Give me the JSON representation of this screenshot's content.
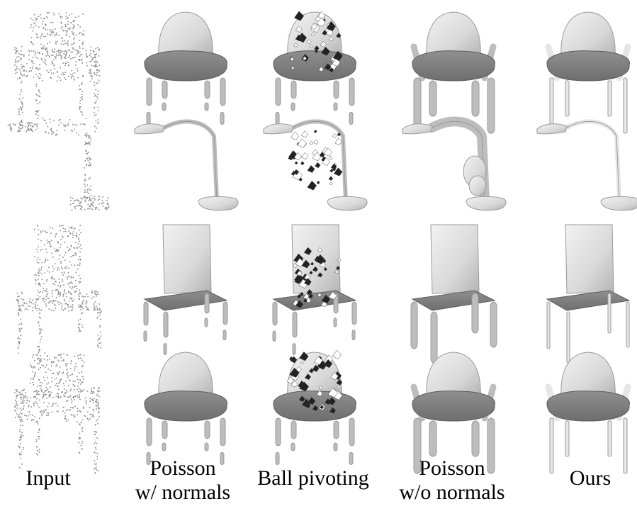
{
  "figure": {
    "columns": [
      {
        "id": "input",
        "lines": [
          "Input"
        ]
      },
      {
        "id": "poisson-normals",
        "lines": [
          "Poisson",
          "w/ normals"
        ]
      },
      {
        "id": "ball-pivoting",
        "lines": [
          "Ball pivoting"
        ]
      },
      {
        "id": "poisson-no-normals",
        "lines": [
          "Poisson",
          "w/o normals"
        ]
      },
      {
        "id": "ours",
        "lines": [
          "Ours"
        ]
      }
    ],
    "rows": [
      "armchair",
      "lamp",
      "chair",
      "armchair-2"
    ],
    "colors": {
      "background": "#ffffff",
      "point": "#8a8a8a",
      "surface_light": "#e6e6e6",
      "surface_mid": "#bdbdbd",
      "surface_dark": "#777777",
      "hole_dark": "#222222",
      "text": "#000000"
    }
  }
}
